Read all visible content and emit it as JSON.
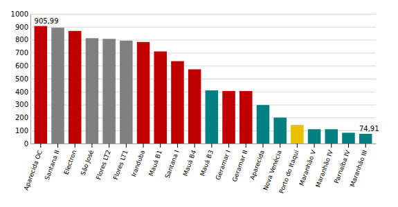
{
  "chart_data": {
    "type": "bar",
    "categories": [
      "Aparecida OC",
      "Santana II",
      "Electron",
      "São José",
      "Flores LT2",
      "Flores LT1",
      "Iranduba",
      "Mauá B1",
      "Santana I",
      "Mauá B4",
      "Mauá B3",
      "Geramar I",
      "Geramar II",
      "Aparecida",
      "Nova Venécia",
      "Porto do Itaqui",
      "Maranhão V",
      "Maranhão IV",
      "Parnaíba IV",
      "Maranhão III"
    ],
    "values": [
      905.99,
      893,
      868,
      812,
      807,
      793,
      783,
      710,
      635,
      572,
      410,
      405,
      405,
      297,
      200,
      143,
      110,
      110,
      83,
      74.91
    ],
    "value_labels": [
      "905,99",
      null,
      null,
      null,
      null,
      null,
      null,
      null,
      null,
      null,
      null,
      null,
      null,
      null,
      null,
      null,
      null,
      null,
      null,
      "74,91"
    ],
    "colors": [
      "#C00000",
      "#808080",
      "#C00000",
      "#808080",
      "#808080",
      "#808080",
      "#C00000",
      "#C00000",
      "#C00000",
      "#C00000",
      "#008080",
      "#C00000",
      "#C00000",
      "#008080",
      "#008080",
      "#E8C000",
      "#008080",
      "#008080",
      "#008080",
      "#008080"
    ],
    "ylim": [
      0,
      1000
    ],
    "yticks": [
      0,
      100,
      200,
      300,
      400,
      500,
      600,
      700,
      800,
      900,
      1000
    ],
    "grid": true
  }
}
